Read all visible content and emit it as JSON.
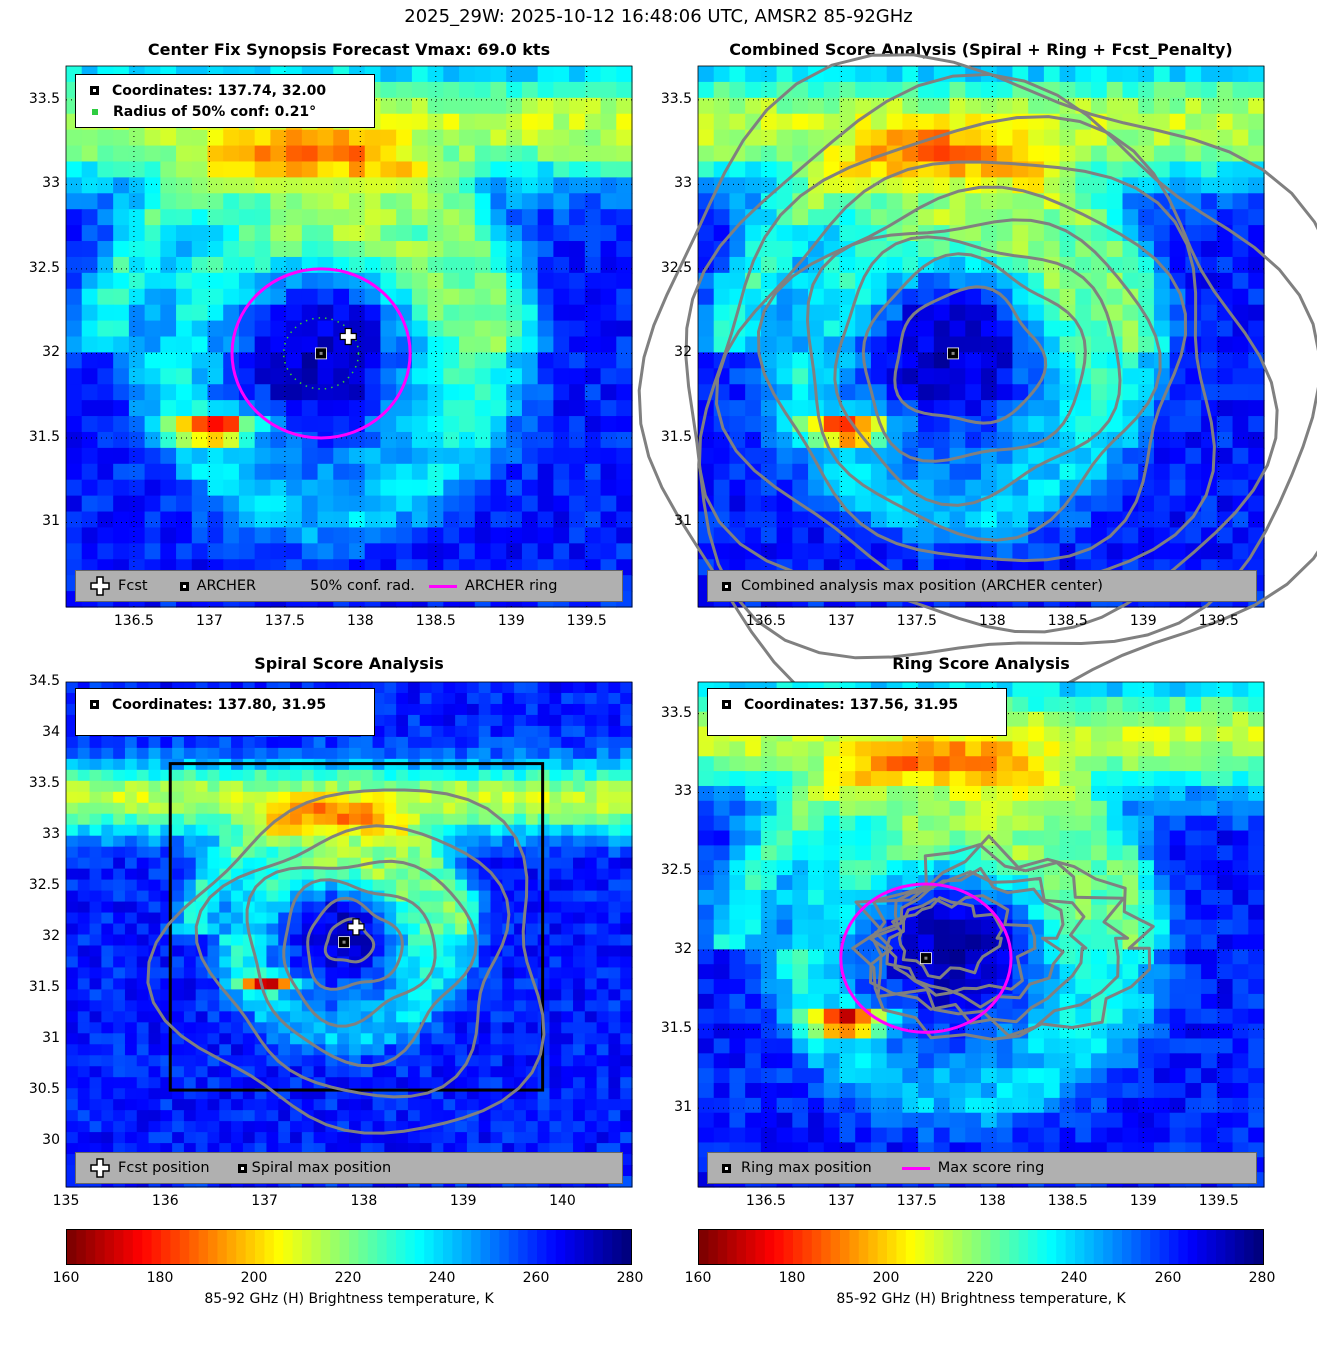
{
  "suptitle": "2025_29W: 2025-10-12 16:48:06 UTC, AMSR2 85-92GHz",
  "colorscale": [
    "#800000",
    "#ff0000",
    "#ff8000",
    "#ffff00",
    "#80ff80",
    "#00ffff",
    "#0080ff",
    "#0000ff",
    "#000080"
  ],
  "panels": {
    "p1": {
      "title": "Center Fix Synopsis     Forecast Vmax: 69.0 kts",
      "info": {
        "coords": "Coordinates: 137.74, 32.00",
        "radius": "Radius of 50% conf: 0.21°"
      },
      "legend": {
        "fcst": "Fcst",
        "archer": "ARCHER",
        "conf": "50% conf. rad.",
        "ring": "ARCHER ring"
      }
    },
    "p2": {
      "title": "Combined Score Analysis (Spiral + Ring + Fcst_Penalty)",
      "legend": {
        "max": "Combined analysis max position (ARCHER center)"
      }
    },
    "p3": {
      "title": "Spiral Score Analysis",
      "info": {
        "coords": "Coordinates: 137.80, 31.95"
      },
      "legend": {
        "fcst": "Fcst position",
        "max": "Spiral max position"
      }
    },
    "p4": {
      "title": "Ring Score Analysis",
      "info": {
        "coords": "Coordinates: 137.56, 31.95"
      },
      "legend": {
        "max": "Ring max position",
        "ring": "Max score ring"
      }
    }
  },
  "colorbar": {
    "ticks": [
      "160",
      "180",
      "200",
      "220",
      "240",
      "260",
      "280"
    ],
    "label": "85-92 GHz (H) Brightness temperature, K"
  },
  "chart_data": [
    {
      "type": "heatmap",
      "title": "Center Fix Synopsis     Forecast Vmax: 69.0 kts",
      "xlim": [
        136.05,
        139.8
      ],
      "ylim": [
        30.5,
        33.7
      ],
      "xticks": [
        "136.5",
        "137",
        "137.5",
        "138",
        "138.5",
        "139",
        "139.5"
      ],
      "yticks": [
        "31",
        "31.5",
        "32",
        "32.5",
        "33",
        "33.5"
      ],
      "grid": true,
      "archer_center": {
        "lon": 137.74,
        "lat": 32.0
      },
      "forecast_position": {
        "lon": 137.92,
        "lat": 32.1
      },
      "ring_radius_deg": 0.5,
      "conf50_radius_deg": 0.21,
      "legend_position": "bottom"
    },
    {
      "type": "heatmap",
      "title": "Combined Score Analysis (Spiral + Ring + Fcst_Penalty)",
      "xlim": [
        136.05,
        139.8
      ],
      "ylim": [
        30.5,
        33.7
      ],
      "xticks": [
        "136.5",
        "137",
        "137.5",
        "138",
        "138.5",
        "139",
        "139.5"
      ],
      "yticks": [
        "31",
        "31.5",
        "32",
        "32.5",
        "33",
        "33.5"
      ],
      "grid": true,
      "max_position": {
        "lon": 137.74,
        "lat": 32.0
      },
      "legend_position": "bottom"
    },
    {
      "type": "heatmap",
      "title": "Spiral Score Analysis",
      "xlim": [
        135.0,
        140.7
      ],
      "ylim": [
        29.55,
        34.5
      ],
      "xticks": [
        "135",
        "136",
        "137",
        "138",
        "139",
        "140"
      ],
      "yticks": [
        "30",
        "30.5",
        "31",
        "31.5",
        "32",
        "32.5",
        "33",
        "33.5",
        "34",
        "34.5"
      ],
      "grid": false,
      "spiral_max": {
        "lon": 137.8,
        "lat": 31.95
      },
      "forecast_position": {
        "lon": 137.92,
        "lat": 32.1
      },
      "search_box": {
        "lon": [
          136.05,
          139.8
        ],
        "lat": [
          30.5,
          33.7
        ]
      },
      "legend_position": "bottom"
    },
    {
      "type": "heatmap",
      "title": "Ring Score Analysis",
      "xlim": [
        136.05,
        139.8
      ],
      "ylim": [
        30.5,
        33.7
      ],
      "xticks": [
        "136.5",
        "137",
        "137.5",
        "138",
        "138.5",
        "139",
        "139.5"
      ],
      "yticks": [
        "31",
        "31.5",
        "32",
        "32.5",
        "33",
        "33.5"
      ],
      "grid": true,
      "ring_max": {
        "lon": 137.56,
        "lat": 31.95
      },
      "ring_radius_deg": 0.47,
      "legend_position": "bottom"
    }
  ]
}
